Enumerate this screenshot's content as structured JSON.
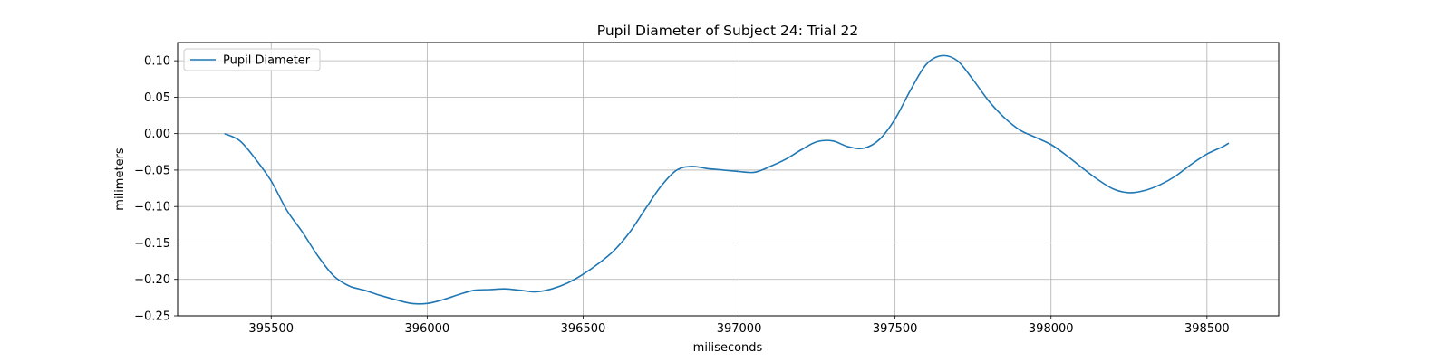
{
  "chart_data": {
    "type": "line",
    "title": "Pupil Diameter of Subject 24: Trial 22",
    "xlabel": "miliseconds",
    "ylabel": "milimeters",
    "xlim": [
      395200,
      398730
    ],
    "ylim": [
      -0.25,
      0.125
    ],
    "x_ticks": [
      395500,
      396000,
      396500,
      397000,
      397500,
      398000,
      398500
    ],
    "y_ticks": [
      -0.25,
      -0.2,
      -0.15,
      -0.1,
      -0.05,
      0.0,
      0.05,
      0.1
    ],
    "x_tick_labels": [
      "395500",
      "396000",
      "396500",
      "397000",
      "397500",
      "398000",
      "398500"
    ],
    "y_tick_labels": [
      "−0.25",
      "−0.20",
      "−0.15",
      "−0.10",
      "−0.05",
      "0.00",
      "0.05",
      "0.10"
    ],
    "grid": true,
    "legend": {
      "placement": "top-left",
      "entries": [
        "Pupil Diameter"
      ]
    },
    "series": [
      {
        "name": "Pupil Diameter",
        "color": "#1f77b4",
        "x": [
          395350,
          395400,
          395450,
          395500,
          395550,
          395600,
          395650,
          395700,
          395750,
          395800,
          395850,
          395900,
          395950,
          396000,
          396050,
          396100,
          396150,
          396200,
          396250,
          396300,
          396350,
          396400,
          396450,
          396500,
          396550,
          396600,
          396650,
          396700,
          396750,
          396800,
          396850,
          396900,
          396950,
          397000,
          397050,
          397100,
          397150,
          397200,
          397250,
          397300,
          397350,
          397400,
          397450,
          397500,
          397550,
          397600,
          397650,
          397700,
          397750,
          397800,
          397850,
          397900,
          397950,
          398000,
          398050,
          398100,
          398150,
          398200,
          398250,
          398300,
          398350,
          398400,
          398450,
          398500,
          398550,
          398570
        ],
        "y": [
          0.0,
          -0.01,
          -0.035,
          -0.065,
          -0.105,
          -0.135,
          -0.168,
          -0.195,
          -0.209,
          -0.215,
          -0.222,
          -0.228,
          -0.233,
          -0.233,
          -0.228,
          -0.221,
          -0.215,
          -0.214,
          -0.213,
          -0.215,
          -0.217,
          -0.213,
          -0.205,
          -0.193,
          -0.178,
          -0.16,
          -0.135,
          -0.103,
          -0.072,
          -0.05,
          -0.045,
          -0.048,
          -0.05,
          -0.052,
          -0.053,
          -0.045,
          -0.035,
          -0.022,
          -0.011,
          -0.01,
          -0.018,
          -0.02,
          -0.008,
          0.02,
          0.06,
          0.095,
          0.107,
          0.1,
          0.074,
          0.045,
          0.022,
          0.005,
          -0.005,
          -0.015,
          -0.03,
          -0.047,
          -0.063,
          -0.076,
          -0.081,
          -0.078,
          -0.07,
          -0.058,
          -0.042,
          -0.028,
          -0.018,
          -0.013
        ]
      }
    ]
  }
}
